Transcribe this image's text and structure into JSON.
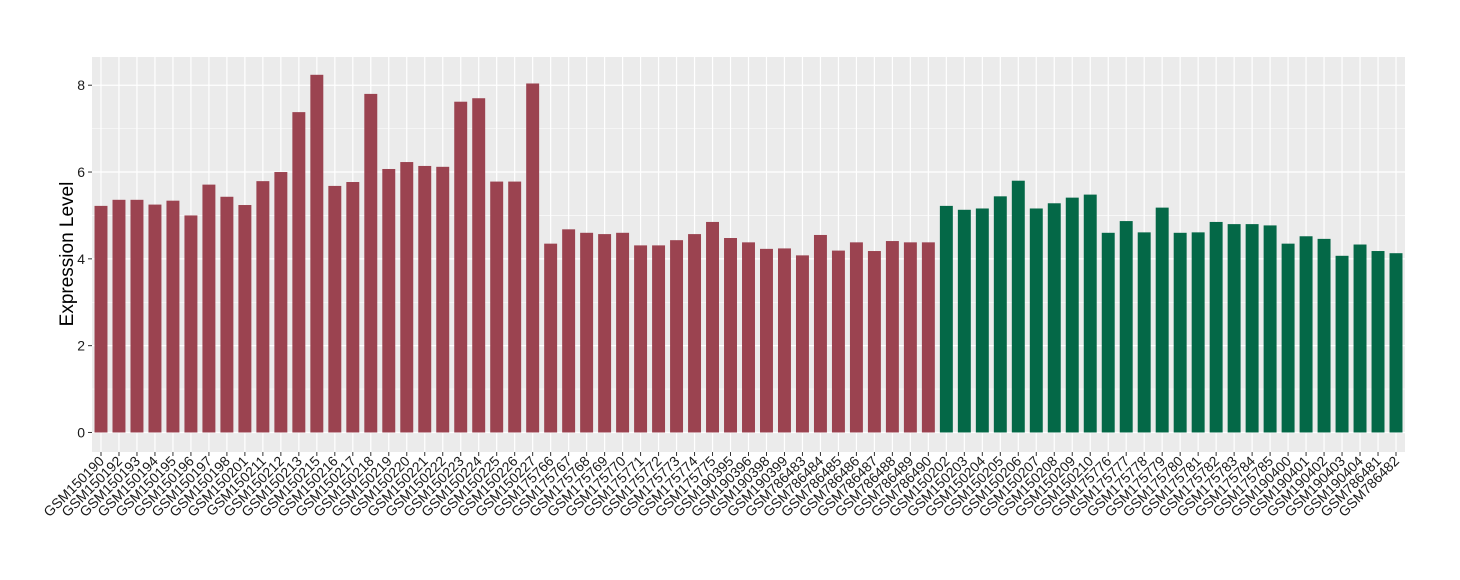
{
  "chart_data": {
    "type": "bar",
    "title": "",
    "xlabel": "",
    "ylabel": "Expression Level",
    "ylim": [
      -0.45,
      8.65
    ],
    "yticks": [
      0,
      2,
      4,
      6,
      8
    ],
    "grid": true,
    "legend": "none",
    "colors": {
      "group_1": "#9B4350",
      "group_2": "#046847",
      "panel": "#EBEBEB",
      "grid": "#FFFFFF"
    },
    "categories": [
      "GSM150190",
      "GSM150192",
      "GSM150193",
      "GSM150194",
      "GSM150195",
      "GSM150196",
      "GSM150197",
      "GSM150198",
      "GSM150201",
      "GSM150211",
      "GSM150212",
      "GSM150213",
      "GSM150215",
      "GSM150216",
      "GSM150217",
      "GSM150218",
      "GSM150219",
      "GSM150220",
      "GSM150221",
      "GSM150222",
      "GSM150223",
      "GSM150224",
      "GSM150225",
      "GSM150226",
      "GSM150227",
      "GSM175766",
      "GSM175767",
      "GSM175768",
      "GSM175769",
      "GSM175770",
      "GSM175771",
      "GSM175772",
      "GSM175773",
      "GSM175774",
      "GSM175775",
      "GSM190395",
      "GSM190396",
      "GSM190398",
      "GSM190399",
      "GSM786483",
      "GSM786484",
      "GSM786485",
      "GSM786486",
      "GSM786487",
      "GSM786488",
      "GSM786489",
      "GSM786490",
      "GSM150202",
      "GSM150203",
      "GSM150204",
      "GSM150205",
      "GSM150206",
      "GSM150207",
      "GSM150208",
      "GSM150209",
      "GSM150210",
      "GSM175776",
      "GSM175777",
      "GSM175778",
      "GSM175779",
      "GSM175780",
      "GSM175781",
      "GSM175782",
      "GSM175783",
      "GSM175784",
      "GSM175785",
      "GSM190400",
      "GSM190401",
      "GSM190402",
      "GSM190403",
      "GSM190404",
      "GSM786481",
      "GSM786482"
    ],
    "values": [
      5.22,
      5.36,
      5.36,
      5.25,
      5.34,
      5.0,
      5.71,
      5.43,
      5.24,
      5.79,
      6.0,
      7.38,
      8.24,
      5.68,
      5.77,
      7.8,
      6.07,
      6.23,
      6.14,
      6.12,
      7.62,
      7.7,
      5.78,
      5.78,
      8.04,
      4.35,
      4.68,
      4.6,
      4.57,
      4.6,
      4.31,
      4.31,
      4.43,
      4.57,
      4.85,
      4.48,
      4.38,
      4.23,
      4.24,
      4.08,
      4.55,
      4.19,
      4.38,
      4.18,
      4.41,
      4.38,
      4.38,
      5.22,
      5.13,
      5.16,
      5.44,
      5.8,
      5.16,
      5.28,
      5.41,
      5.48,
      4.6,
      4.87,
      4.61,
      5.18,
      4.6,
      4.61,
      4.85,
      4.8,
      4.8,
      4.77,
      4.35,
      4.52,
      4.46,
      4.07,
      4.33,
      4.18,
      4.13
    ],
    "group_sizes": [
      47,
      26
    ]
  }
}
